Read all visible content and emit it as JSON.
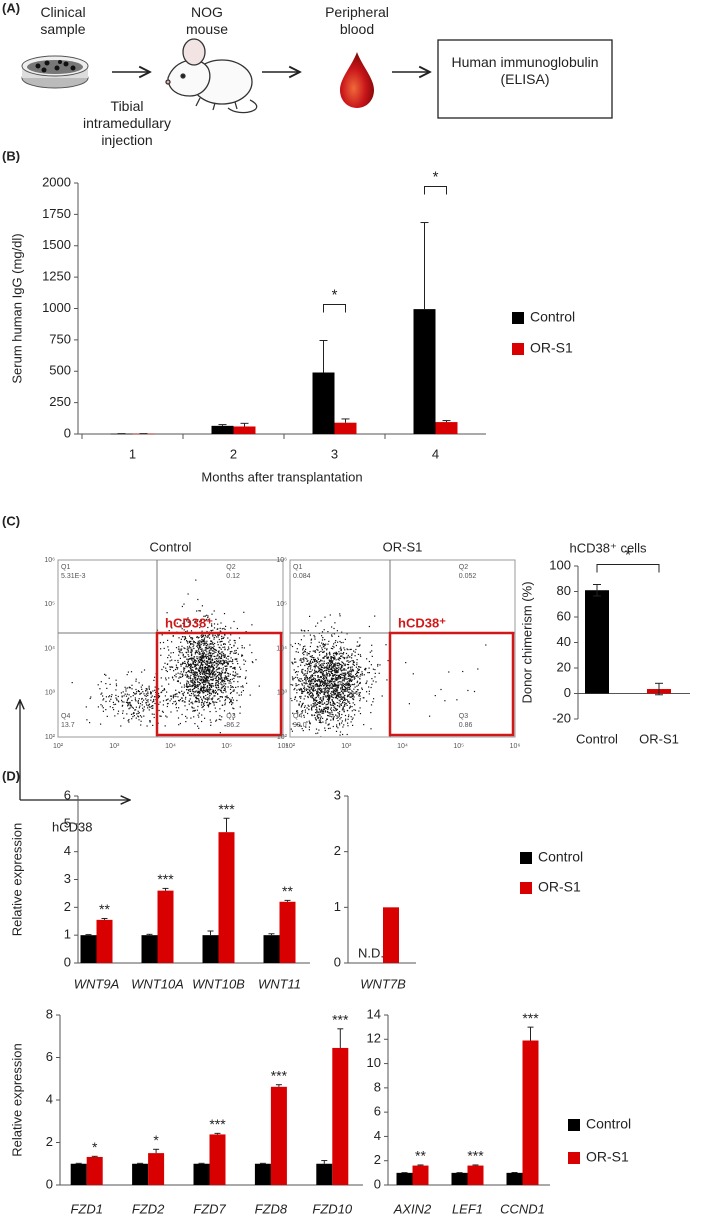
{
  "panel_labels": [
    "(A)",
    "(B)",
    "(C)",
    "(D)"
  ],
  "workflow": {
    "steps": [
      "Clinical sample",
      "NOG mouse",
      "Peripheral blood",
      "Human immunoglobulin (ELISA)"
    ],
    "injection": "Tibial intramedullary injection"
  },
  "flow": {
    "plots": [
      {
        "title": "Control",
        "quadrants": [
          {
            "name": "Q1",
            "value": "5.31E-3"
          },
          {
            "name": "Q2",
            "value": "0.12"
          },
          {
            "name": "Q3",
            "value": "86.2"
          },
          {
            "name": "Q4",
            "value": "13.7"
          }
        ]
      },
      {
        "title": "OR-S1",
        "quadrants": [
          {
            "name": "Q1",
            "value": "0.084"
          },
          {
            "name": "Q2",
            "value": "0.052"
          },
          {
            "name": "Q3",
            "value": "0.86"
          },
          {
            "name": "Q4",
            "value": "99.0"
          }
        ]
      }
    ],
    "gate_label": "hCD38⁺",
    "axis_label": "hCD38",
    "axis_ticks": [
      "10²",
      "10³",
      "10⁴",
      "10⁵",
      "10⁶"
    ]
  },
  "chart_data": [
    {
      "type": "bar",
      "x_label": "Months after transplantation",
      "y_label": "Serum human IgG (mg/dl)",
      "categories": [
        "1",
        "2",
        "3",
        "4"
      ],
      "series": [
        {
          "name": "Control",
          "color": "#000000",
          "values": [
            2,
            65,
            490,
            995
          ],
          "errors": [
            1,
            10,
            255,
            690
          ]
        },
        {
          "name": "OR-S1",
          "color": "#d80000",
          "values": [
            2,
            60,
            90,
            95
          ],
          "errors": [
            1,
            25,
            30,
            12
          ]
        }
      ],
      "annotations": [
        null,
        null,
        "*",
        "*"
      ],
      "brackets": true,
      "ylim": [
        0,
        2000
      ],
      "yticks": [
        0,
        250,
        500,
        750,
        1000,
        1250,
        1500,
        1750,
        2000
      ],
      "legend": true
    },
    {
      "type": "bar",
      "title": "hCD38⁺ cells",
      "y_label": "Donor chimerism (%)",
      "categories": [
        "Control",
        "OR-S1"
      ],
      "colors": [
        "#000000",
        "#d80000"
      ],
      "series": [
        {
          "values": [
            81,
            3.5
          ],
          "errors": [
            4.5,
            4.5
          ]
        }
      ],
      "error_bars": "both",
      "annotation": "*",
      "ylim": [
        -20,
        100
      ],
      "yticks": [
        -20,
        0,
        20,
        40,
        60,
        80,
        100
      ]
    },
    {
      "type": "bar",
      "y_label": "Relative expression",
      "category_style": "italic",
      "categories": [
        "WNT9A",
        "WNT10A",
        "WNT10B",
        "WNT11"
      ],
      "series": [
        {
          "color": "#000000",
          "values": [
            1,
            1,
            1,
            1
          ],
          "errors": [
            0.02,
            0.03,
            0.15,
            0.05
          ]
        },
        {
          "color": "#d80000",
          "values": [
            1.55,
            2.6,
            4.7,
            2.2
          ],
          "errors": [
            0.05,
            0.08,
            0.5,
            0.05
          ]
        }
      ],
      "annotations": [
        "**",
        "***",
        "***",
        "**"
      ],
      "ylim": [
        0,
        6
      ],
      "yticks": [
        0,
        1,
        2,
        3,
        4,
        5,
        6
      ]
    },
    {
      "type": "bar",
      "category_style": "italic",
      "categories": [
        "WNT7B"
      ],
      "series": [
        {
          "name": "Control",
          "color": "#000000",
          "values": [
            null
          ],
          "value_labels": [
            "N.D."
          ]
        },
        {
          "name": "OR-S1",
          "color": "#d80000",
          "values": [
            1
          ]
        }
      ],
      "ylim": [
        0,
        3
      ],
      "yticks": [
        0,
        1,
        2,
        3
      ],
      "legend": true
    },
    {
      "type": "bar",
      "y_label": "Relative expression",
      "category_style": "italic",
      "categories": [
        "FZD1",
        "FZD2",
        "FZD7",
        "FZD8",
        "FZD10"
      ],
      "series": [
        {
          "color": "#000000",
          "values": [
            1,
            1,
            1,
            1,
            1
          ],
          "errors": [
            0.02,
            0.02,
            0.02,
            0.02,
            0.15
          ]
        },
        {
          "color": "#d80000",
          "values": [
            1.32,
            1.5,
            2.38,
            4.62,
            6.45
          ],
          "errors": [
            0.03,
            0.18,
            0.05,
            0.1,
            0.9
          ]
        }
      ],
      "annotations": [
        "*",
        "*",
        "***",
        "***",
        "***"
      ],
      "ylim": [
        0,
        8
      ],
      "yticks": [
        0,
        2,
        4,
        6,
        8
      ]
    },
    {
      "type": "bar",
      "category_style": "italic",
      "categories": [
        "AXIN2",
        "LEF1",
        "CCND1"
      ],
      "series": [
        {
          "name": "Control",
          "color": "#000000",
          "values": [
            1,
            1,
            1
          ],
          "errors": [
            0.02,
            0.02,
            0.03
          ]
        },
        {
          "name": "OR-S1",
          "color": "#d80000",
          "values": [
            1.6,
            1.6,
            11.9
          ],
          "errors": [
            0.05,
            0.05,
            1.1
          ]
        }
      ],
      "annotations": [
        "**",
        "***",
        "***"
      ],
      "ylim": [
        0,
        14
      ],
      "yticks": [
        0,
        2,
        4,
        6,
        8,
        10,
        12,
        14
      ],
      "legend": true
    }
  ]
}
